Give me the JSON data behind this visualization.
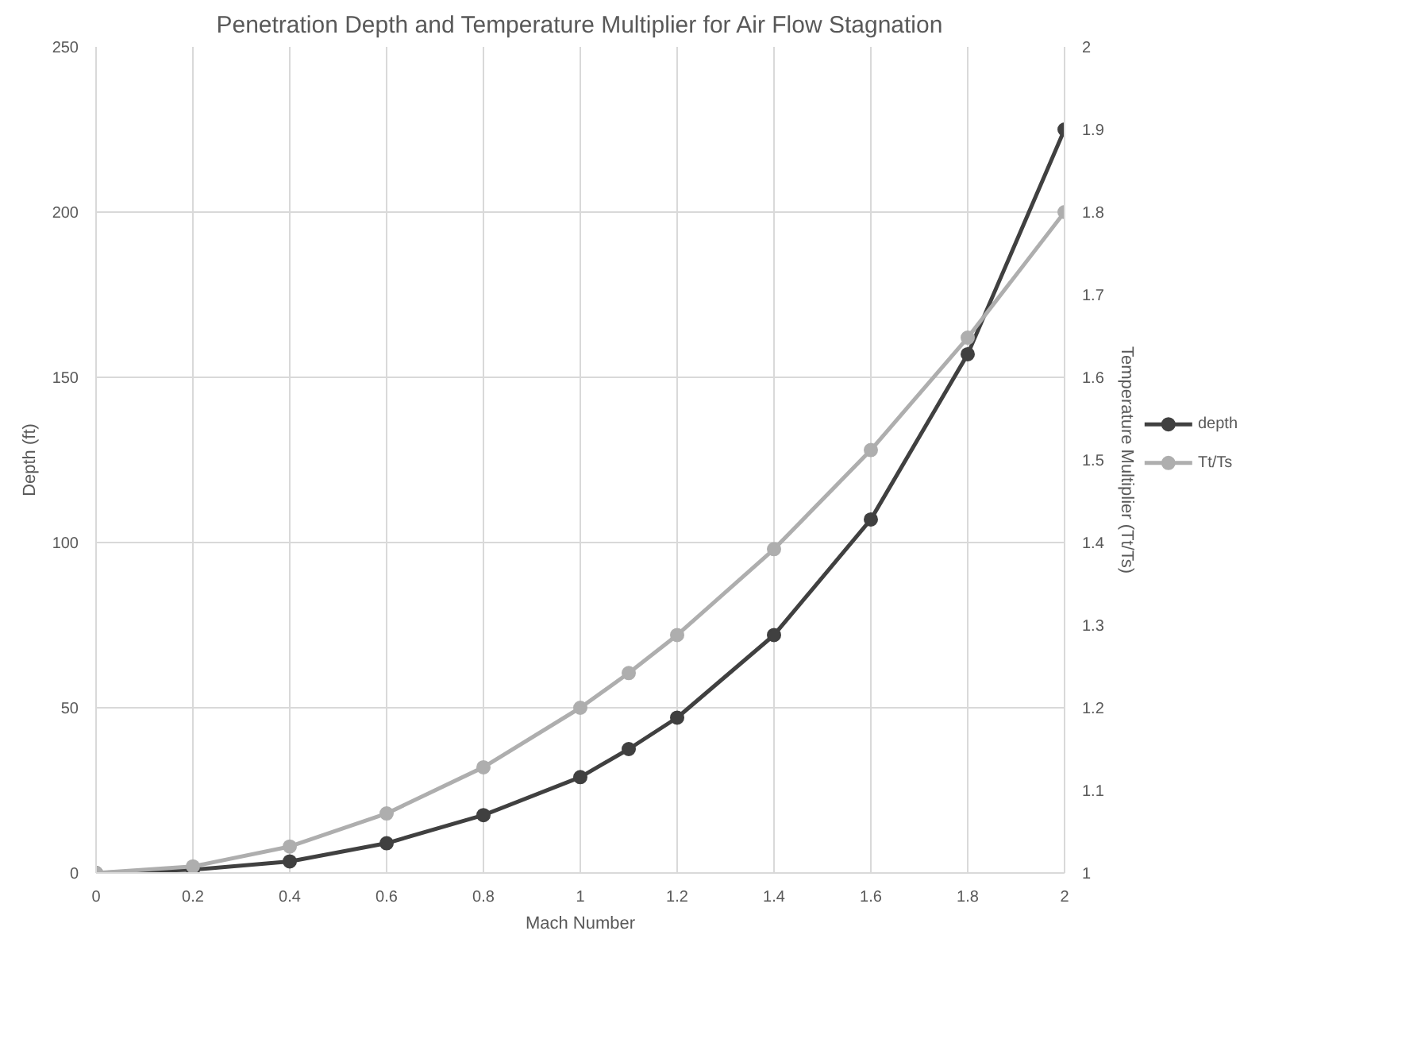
{
  "chart_data": {
    "type": "line",
    "title": "Penetration Depth and Temperature Multiplier for Air Flow Stagnation",
    "xlabel": "Mach Number",
    "ylabel": "Depth (ft)",
    "y2label": "Temperature Multiplier (Tt/Ts)",
    "x": [
      0,
      0.2,
      0.4,
      0.6,
      0.8,
      1,
      1.1,
      1.2,
      1.4,
      1.6,
      1.8,
      2
    ],
    "series": [
      {
        "name": "depth",
        "color": "#404040",
        "values": [
          0,
          1,
          3.5,
          9,
          17.5,
          29,
          37.5,
          47,
          72,
          107,
          157,
          225
        ]
      },
      {
        "name": "Tt/Ts",
        "color": "#aeaeae",
        "axis": "y2",
        "values": [
          1,
          1.008,
          1.032,
          1.072,
          1.128,
          1.2,
          1.242,
          1.288,
          1.392,
          1.512,
          1.648,
          1.8
        ]
      }
    ],
    "xlim": [
      0,
      2
    ],
    "xticks": [
      0,
      0.2,
      0.4,
      0.6,
      0.8,
      1,
      1.2,
      1.4,
      1.6,
      1.8,
      2
    ],
    "ylim": [
      0,
      250
    ],
    "yticks": [
      0,
      50,
      100,
      150,
      200,
      250
    ],
    "y2lim": [
      1,
      2
    ],
    "y2ticks": [
      1,
      1.1,
      1.2,
      1.3,
      1.4,
      1.5,
      1.6,
      1.7,
      1.8,
      1.9,
      2
    ],
    "grid": true,
    "legend": "right",
    "marker": "circle",
    "line_style": "solid"
  }
}
